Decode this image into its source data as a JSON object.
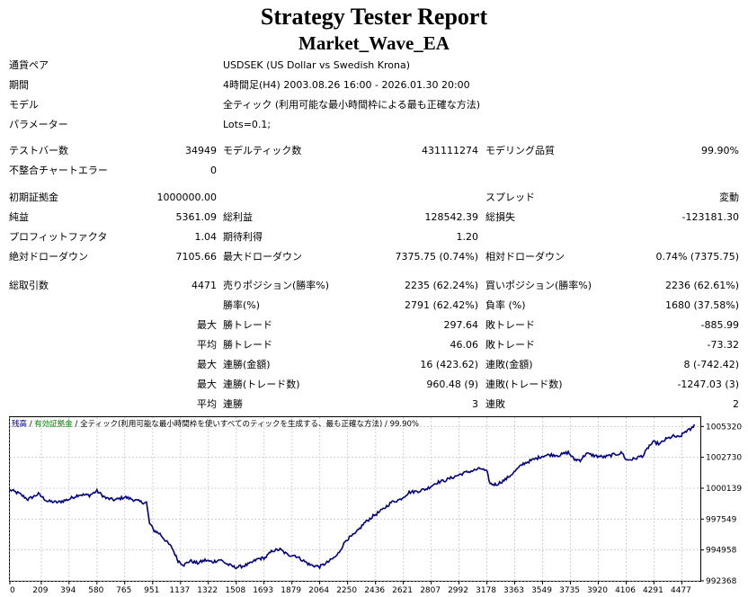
{
  "title": "Strategy Tester Report",
  "subtitle": "Market_Wave_EA",
  "info": [
    {
      "label": "通貨ペア",
      "value": "USDSEK (US Dollar vs Swedish Krona)"
    },
    {
      "label": "期間",
      "value": "4時間足(H4) 2003.08.26 16:00 - 2026.01.30 20:00"
    },
    {
      "label": "モデル",
      "value": "全ティック (利用可能な最小時間枠による最も正確な方法)"
    },
    {
      "label": "パラメーター",
      "value": "Lots=0.1;"
    }
  ],
  "stats": {
    "test_bars_label": "テストバー数",
    "test_bars": "34949",
    "model_ticks_label": "モデルティック数",
    "model_ticks": "431111274",
    "modeling_quality_label": "モデリング品質",
    "modeling_quality": "99.90%",
    "mismatch_label": "不整合チャートエラー",
    "mismatch": "0",
    "initial_deposit_label": "初期証拠金",
    "initial_deposit": "1000000.00",
    "spread_label": "スプレッド",
    "spread": "変動",
    "net_profit_label": "純益",
    "net_profit": "5361.09",
    "gross_profit_label": "総利益",
    "gross_profit": "128542.39",
    "gross_loss_label": "総損失",
    "gross_loss": "-123181.30",
    "profit_factor_label": "プロフィットファクタ",
    "profit_factor": "1.04",
    "expected_payoff_label": "期待利得",
    "expected_payoff": "1.20",
    "abs_dd_label": "絶対ドローダウン",
    "abs_dd": "7105.66",
    "max_dd_label": "最大ドローダウン",
    "max_dd": "7375.75 (0.74%)",
    "rel_dd_label": "相対ドローダウン",
    "rel_dd": "0.74% (7375.75)",
    "total_trades_label": "総取引数",
    "total_trades": "4471",
    "short_label": "売りポジション(勝率%)",
    "short": "2235 (62.24%)",
    "long_label": "買いポジション(勝率%)",
    "long": "2236 (62.61%)",
    "win_rate_label": "勝率(%)",
    "win_rate": "2791 (62.42%)",
    "loss_rate_label": "負率 (%)",
    "loss_rate": "1680 (37.58%)",
    "max_label": "最大",
    "avg_label": "平均",
    "largest_win_label": "勝トレード",
    "largest_win": "297.64",
    "largest_loss_label": "敗トレード",
    "largest_loss": "-885.99",
    "avg_win_label": "勝トレード",
    "avg_win": "46.06",
    "avg_loss_label": "敗トレード",
    "avg_loss": "-73.32",
    "max_consec_wins_money_label": "連勝(金額)",
    "max_consec_wins_money": "16 (423.62)",
    "max_consec_losses_money_label": "連敗(金額)",
    "max_consec_losses_money": "8 (-742.42)",
    "max_consec_profit_label": "連勝(トレード数)",
    "max_consec_profit": "960.48 (9)",
    "max_consec_loss_label": "連敗(トレード数)",
    "max_consec_loss": "-1247.03 (3)",
    "avg_consec_wins_label": "連勝",
    "avg_consec_wins": "3",
    "avg_consec_losses_label": "連敗",
    "avg_consec_losses": "2"
  },
  "chart_data": {
    "type": "line",
    "legend": {
      "balance": "残高",
      "sep1": " / ",
      "equity": "有効証拠金",
      "sep2": " / ",
      "model": "全ティック(利用可能な最小時間枠を使いすべてのティックを生成する、最も正確な方法)",
      "sep3": " / ",
      "quality": "99.90%"
    },
    "colors": {
      "balance": "#000080",
      "equity": "#008000",
      "grid": "#d0d0d0"
    },
    "x_ticks": [
      "0",
      "209",
      "394",
      "580",
      "765",
      "951",
      "1137",
      "1322",
      "1508",
      "1693",
      "1879",
      "2064",
      "2250",
      "2436",
      "2621",
      "2807",
      "2992",
      "3178",
      "3363",
      "3549",
      "3735",
      "3920",
      "4106",
      "4291",
      "4477"
    ],
    "y_ticks": [
      "1005320",
      "1002730",
      "1000139",
      "997549",
      "994958",
      "992368"
    ],
    "xlim": [
      0,
      4600
    ],
    "ylim": [
      992368,
      1006100
    ],
    "series": [
      {
        "values": [
          [
            0,
            1000000
          ],
          [
            60,
            999700
          ],
          [
            120,
            999200
          ],
          [
            190,
            999650
          ],
          [
            250,
            999050
          ],
          [
            320,
            998950
          ],
          [
            390,
            999200
          ],
          [
            460,
            999600
          ],
          [
            530,
            999550
          ],
          [
            580,
            999900
          ],
          [
            640,
            999300
          ],
          [
            700,
            999150
          ],
          [
            765,
            999400
          ],
          [
            830,
            999150
          ],
          [
            880,
            998950
          ],
          [
            910,
            998950
          ],
          [
            930,
            997200
          ],
          [
            960,
            996600
          ],
          [
            1000,
            996300
          ],
          [
            1040,
            995700
          ],
          [
            1080,
            995150
          ],
          [
            1120,
            994050
          ],
          [
            1160,
            993700
          ],
          [
            1200,
            994050
          ],
          [
            1250,
            993850
          ],
          [
            1300,
            994100
          ],
          [
            1350,
            993950
          ],
          [
            1400,
            994150
          ],
          [
            1450,
            993750
          ],
          [
            1500,
            993500
          ],
          [
            1550,
            993600
          ],
          [
            1600,
            993800
          ],
          [
            1650,
            994200
          ],
          [
            1700,
            994300
          ],
          [
            1750,
            994900
          ],
          [
            1800,
            995000
          ],
          [
            1850,
            994550
          ],
          [
            1900,
            994500
          ],
          [
            1950,
            994100
          ],
          [
            2000,
            993700
          ],
          [
            2064,
            993550
          ],
          [
            2120,
            993950
          ],
          [
            2180,
            994500
          ],
          [
            2240,
            995800
          ],
          [
            2300,
            996300
          ],
          [
            2360,
            997200
          ],
          [
            2420,
            997800
          ],
          [
            2480,
            998300
          ],
          [
            2540,
            998950
          ],
          [
            2600,
            999200
          ],
          [
            2660,
            999800
          ],
          [
            2720,
            999900
          ],
          [
            2780,
            1000100
          ],
          [
            2840,
            1000600
          ],
          [
            2900,
            1000800
          ],
          [
            2960,
            1001100
          ],
          [
            3020,
            1001400
          ],
          [
            3080,
            1001600
          ],
          [
            3140,
            1001800
          ],
          [
            3178,
            1001500
          ],
          [
            3200,
            1000500
          ],
          [
            3240,
            1000450
          ],
          [
            3300,
            1000850
          ],
          [
            3360,
            1001500
          ],
          [
            3420,
            1002200
          ],
          [
            3480,
            1002500
          ],
          [
            3549,
            1002850
          ],
          [
            3600,
            1002950
          ],
          [
            3660,
            1002900
          ],
          [
            3720,
            1003150
          ],
          [
            3760,
            1002550
          ],
          [
            3800,
            1002500
          ],
          [
            3840,
            1003050
          ],
          [
            3900,
            1002850
          ],
          [
            3960,
            1002750
          ],
          [
            4020,
            1002950
          ],
          [
            4080,
            1003100
          ],
          [
            4106,
            1002500
          ],
          [
            4160,
            1002600
          ],
          [
            4220,
            1002900
          ],
          [
            4260,
            1003700
          ],
          [
            4291,
            1004000
          ],
          [
            4330,
            1003850
          ],
          [
            4370,
            1004250
          ],
          [
            4420,
            1004500
          ],
          [
            4460,
            1004400
          ],
          [
            4500,
            1004900
          ],
          [
            4540,
            1005100
          ],
          [
            4560,
            1005500
          ]
        ]
      }
    ]
  }
}
